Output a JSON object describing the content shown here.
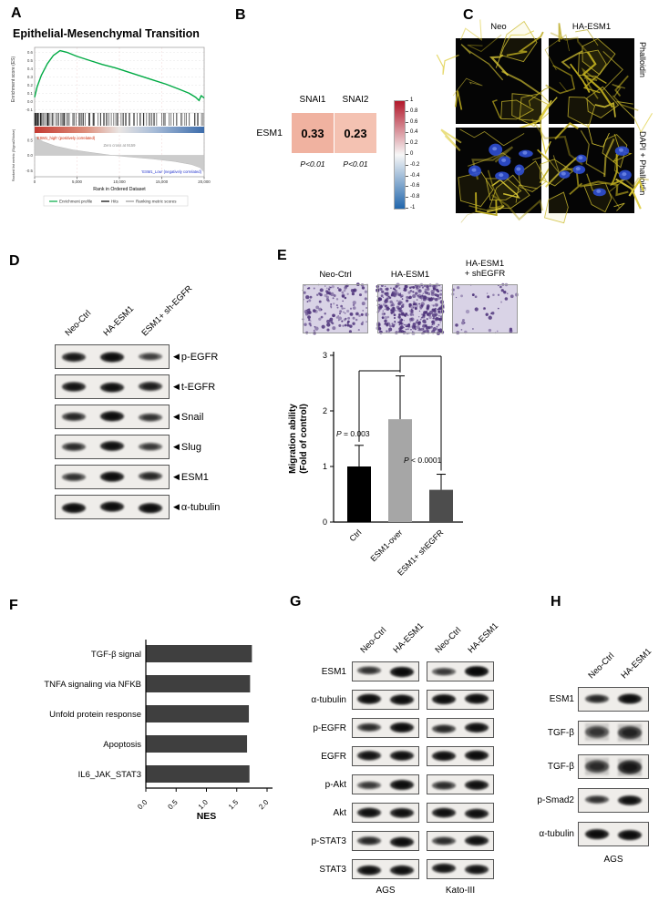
{
  "icons": {
    "band_arrow": "◀"
  },
  "panels": {
    "A": {
      "letter": "A"
    },
    "B": {
      "letter": "B"
    },
    "C": {
      "letter": "C",
      "col_labels": [
        "Neo",
        "HA-ESM1"
      ],
      "row_labels": [
        "Phalloidin",
        "DAPI + Phalloidin"
      ]
    },
    "D": {
      "letter": "D",
      "lanes": [
        "Neo-Ctrl",
        "HA-ESM1",
        "ESM1+ sh-EGFR"
      ],
      "rows": [
        {
          "label": "p-EGFR",
          "intensities": [
            0.75,
            0.9,
            0.4
          ]
        },
        {
          "label": "t-EGFR",
          "intensities": [
            0.8,
            0.85,
            0.7
          ]
        },
        {
          "label": "Snail",
          "intensities": [
            0.6,
            0.9,
            0.5
          ]
        },
        {
          "label": "Slug",
          "intensities": [
            0.55,
            0.85,
            0.45
          ]
        },
        {
          "label": "ESM1",
          "intensities": [
            0.5,
            0.9,
            0.6
          ]
        },
        {
          "label": "α-tubulin",
          "intensities": [
            0.9,
            0.9,
            0.9
          ]
        }
      ]
    },
    "E": {
      "letter": "E",
      "image_labels": [
        [
          "Neo-Ctrl"
        ],
        [
          "HA-ESM1"
        ],
        [
          "HA-ESM1",
          "+ shEGFR"
        ]
      ],
      "dot_density": [
        150,
        430,
        45
      ]
    },
    "F": {
      "letter": "F"
    },
    "G": {
      "letter": "G",
      "lanes": [
        "Neo-Ctrl",
        "HA-ESM1",
        "Neo-Ctrl",
        "HA-ESM1"
      ],
      "groups": [
        "AGS",
        "Kato-III"
      ],
      "rows": [
        {
          "label": "ESM1",
          "intensities": [
            0.5,
            0.95,
            0.45,
            1.0
          ]
        },
        {
          "label": "α-tubulin",
          "intensities": [
            0.9,
            0.9,
            0.9,
            0.9
          ]
        },
        {
          "label": "p-EGFR",
          "intensities": [
            0.55,
            0.9,
            0.6,
            0.85
          ]
        },
        {
          "label": "EGFR",
          "intensities": [
            0.8,
            0.85,
            0.85,
            0.9
          ]
        },
        {
          "label": "p-Akt",
          "intensities": [
            0.45,
            0.9,
            0.55,
            0.85
          ]
        },
        {
          "label": "Akt",
          "intensities": [
            0.85,
            0.85,
            0.85,
            0.85
          ]
        },
        {
          "label": "p-STAT3",
          "intensities": [
            0.6,
            0.9,
            0.55,
            0.85
          ]
        },
        {
          "label": "STAT3",
          "intensities": [
            0.85,
            0.85,
            0.8,
            0.8
          ]
        }
      ]
    },
    "H": {
      "letter": "H",
      "lanes": [
        "Neo-Ctrl",
        "HA-ESM1"
      ],
      "caption": "AGS",
      "rows": [
        {
          "label": "ESM1",
          "intensities": [
            0.6,
            0.9
          ],
          "smear": false
        },
        {
          "label": "TGF-β",
          "intensities": [
            0.45,
            0.65
          ],
          "smear": true
        },
        {
          "label": "TGF-β",
          "intensities": [
            0.55,
            0.8
          ],
          "smear": true
        },
        {
          "label": "p-Smad2",
          "intensities": [
            0.5,
            0.85
          ],
          "smear": false
        },
        {
          "label": "α-tubulin",
          "intensities": [
            0.92,
            0.92
          ],
          "smear": false
        }
      ]
    }
  },
  "chart_data": [
    {
      "id": "gsea_emt",
      "type": "line",
      "title": "Epithelial-Mesenchymal Transition",
      "ylabel": "Enrichment score (ES)",
      "ylabel2": "Ranked list metric (Signal2Noise)",
      "xlabel": "Rank in Ordered Dataset",
      "x_range": [
        0,
        20000
      ],
      "x_ticks": [
        "0",
        "5,000",
        "10,000",
        "15,000",
        "20,000"
      ],
      "es_ticks": [
        "0.6",
        "0.5",
        "0.4",
        "0.3",
        "0.2",
        "0.1",
        "0.0",
        "-0.1"
      ],
      "metric_ticks": [
        "0.5",
        "0.0",
        "-0.5"
      ],
      "es_peak": 0.62,
      "zero_cross": 9159,
      "annotations": {
        "positive": "'ESM1_high' (positively correlated)",
        "zero": "Zero cross at 9159",
        "negative": "'ESM1_Low' (negatively correlated)"
      },
      "legend": [
        "Enrichment profile",
        "Hits",
        "Ranking metric scores"
      ],
      "colors": {
        "curve": "#00aa44",
        "positive_text": "#cc2200",
        "negative_text": "#2233cc"
      },
      "es_curve": [
        [
          0,
          0.05
        ],
        [
          300,
          0.18
        ],
        [
          800,
          0.32
        ],
        [
          1500,
          0.46
        ],
        [
          2200,
          0.56
        ],
        [
          3000,
          0.62
        ],
        [
          3800,
          0.6
        ],
        [
          5000,
          0.55
        ],
        [
          6500,
          0.5
        ],
        [
          8000,
          0.45
        ],
        [
          9500,
          0.41
        ],
        [
          11000,
          0.36
        ],
        [
          12500,
          0.31
        ],
        [
          14000,
          0.26
        ],
        [
          15500,
          0.21
        ],
        [
          17000,
          0.15
        ],
        [
          18200,
          0.1
        ],
        [
          19000,
          0.05
        ],
        [
          19400,
          0.01
        ],
        [
          19650,
          0.07
        ],
        [
          20000,
          0.04
        ]
      ],
      "metric_curve": [
        [
          0,
          0.62
        ],
        [
          1000,
          0.45
        ],
        [
          2500,
          0.3
        ],
        [
          4500,
          0.18
        ],
        [
          6500,
          0.1
        ],
        [
          9159,
          0
        ],
        [
          11500,
          -0.06
        ],
        [
          14000,
          -0.12
        ],
        [
          16500,
          -0.2
        ],
        [
          18500,
          -0.3
        ],
        [
          19500,
          -0.4
        ],
        [
          20000,
          -0.55
        ]
      ]
    },
    {
      "id": "esm1_correlation",
      "type": "heatmap",
      "row": "ESM1",
      "columns": [
        "SNAI1",
        "SNAI2"
      ],
      "values": [
        0.33,
        0.23
      ],
      "p_labels": [
        "P<0.01",
        "P<0.01"
      ],
      "cell_colors": [
        "#f0b2a0",
        "#f4c2b2"
      ],
      "colorbar_ticks": [
        "1",
        "0.8",
        "0.6",
        "0.4",
        "0.2",
        "0",
        "-0.2",
        "-0.4",
        "-0.6",
        "-0.8",
        "-1"
      ],
      "colorbar_colors": [
        "#b2182b",
        "#f7f7f7",
        "#2166ac"
      ]
    },
    {
      "id": "migration",
      "type": "bar",
      "categories": [
        "Ctrl",
        "ESM1-over",
        "ESM1+ shEGFR"
      ],
      "values": [
        1.0,
        1.85,
        0.58
      ],
      "errors": [
        0.38,
        0.78,
        0.28
      ],
      "bar_colors": [
        "#000000",
        "#a6a6a6",
        "#4d4d4d"
      ],
      "ylabel_lines": [
        "Migration ability",
        "(Fold of control)"
      ],
      "ylim": [
        0,
        3
      ],
      "yticks": [
        0,
        1,
        2,
        3
      ],
      "annotations": [
        {
          "text": "P = 0.003",
          "compare": [
            0,
            1
          ]
        },
        {
          "text": "P < 0.0001",
          "compare": [
            1,
            2
          ]
        }
      ]
    },
    {
      "id": "nes",
      "type": "bar",
      "orientation": "horizontal",
      "categories": [
        "TGF-β signal",
        "TNFA signaling via NFKB",
        "Unfold protein response",
        "Apoptosis",
        "IL6_JAK_STAT3"
      ],
      "values": [
        1.75,
        1.72,
        1.7,
        1.67,
        1.71
      ],
      "xlabel": "NES",
      "xlim": [
        0,
        2
      ],
      "xticks": [
        "0.0",
        "0.5",
        "1.0",
        "1.5",
        "2.0"
      ],
      "bar_color": "#3f3f3f"
    }
  ]
}
